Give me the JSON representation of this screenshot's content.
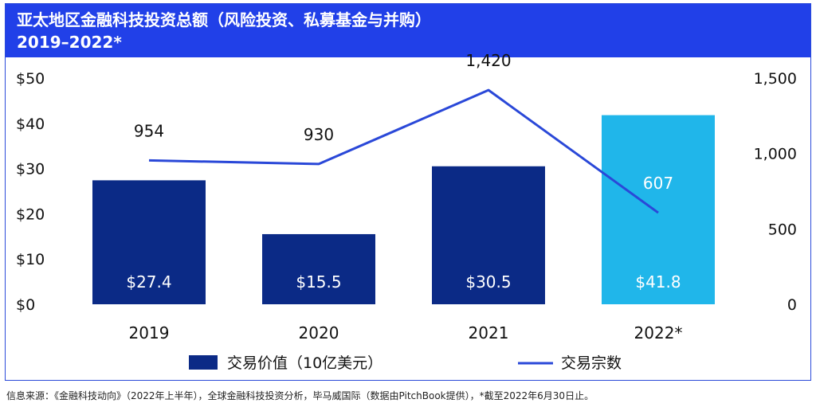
{
  "header": {
    "title_line1": "亚太地区金融科技投资总额（风险投资、私募基金与并购）",
    "title_line2": "2019–2022*"
  },
  "footer": {
    "source": "信息来源：《金融科技动向》（2022年上半年），全球金融科技投资分析，毕马威国际（数据由PitchBook提供），*截至2022年6月30日止。"
  },
  "colors": {
    "header_bg": "#2140e8",
    "bar_default": "#0b2a86",
    "bar_highlight": "#20b6ea",
    "line": "#2a48d8"
  },
  "chart_data": {
    "type": "bar+line",
    "categories": [
      "2019",
      "2020",
      "2021",
      "2022*"
    ],
    "series": [
      {
        "name": "交易价值（10亿美元）",
        "type": "bar",
        "axis": "left",
        "values": [
          27.4,
          15.5,
          30.5,
          41.8
        ],
        "labels": [
          "$27.4",
          "$15.5",
          "$30.5",
          "$41.8"
        ]
      },
      {
        "name": "交易宗数",
        "type": "line",
        "axis": "right",
        "values": [
          954,
          930,
          1420,
          607
        ],
        "labels": [
          "954",
          "930",
          "1,420",
          "607"
        ]
      }
    ],
    "left_axis": {
      "min": 0,
      "max": 50,
      "ticks": [
        0,
        10,
        20,
        30,
        40,
        50
      ],
      "tick_labels": [
        "$0",
        "$10",
        "$20",
        "$30",
        "$40",
        "$50"
      ]
    },
    "right_axis": {
      "min": 0,
      "max": 1500,
      "ticks": [
        0,
        500,
        1000,
        1500
      ],
      "tick_labels": [
        "0",
        "500",
        "1,000",
        "1,500"
      ]
    },
    "legend_position": "bottom",
    "grid": false
  }
}
